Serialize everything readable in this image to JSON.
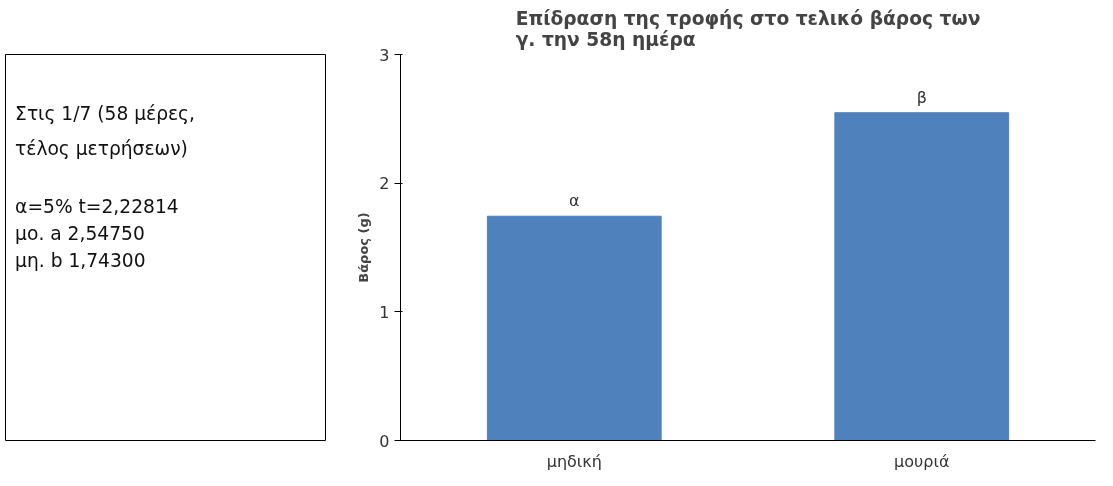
{
  "chart_data": {
    "type": "bar",
    "title": "Επίδραση της τροφής στο τελικό βάρος των\nγ. την 58η ημέρα",
    "ylabel": "Βάρος (g)",
    "categories": [
      "μηδική",
      "μουριά"
    ],
    "values": [
      1.743,
      2.5475
    ],
    "color": "#4f81bd",
    "ylim": [
      0,
      3
    ],
    "yticks": [
      0,
      1,
      2,
      3
    ],
    "grid": false,
    "annotations": [
      "Στις 1/7 (58 μέρες,",
      "τέλος μετρήσεων)",
      "α=5% t=2,22814",
      "μο. a 2,54750",
      "μη. b 1,74300",
      {
        "text": "α",
        "x": "μηδική",
        "y": 1.743
      },
      {
        "text": "β",
        "x": "μουριά",
        "y": 2.5475
      }
    ]
  }
}
